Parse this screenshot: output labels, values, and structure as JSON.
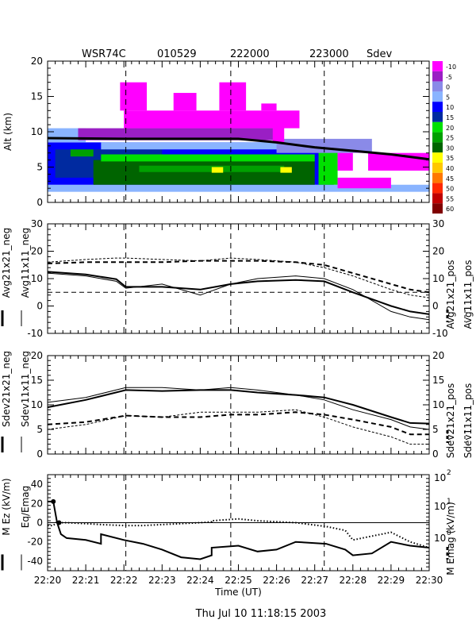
{
  "header": {
    "radar": "WSR74C",
    "date_code": "010529",
    "time_start": "222000",
    "time_end": "223000",
    "product": "Sdev"
  },
  "footer": {
    "timestamp": "Thu Jul 10 11:18:15 2003"
  },
  "chart_data": [
    {
      "id": "radar-panel",
      "type": "heatmap",
      "title": "WSR74C 010529 222000 223000 Sdev",
      "xlabel": "",
      "ylabel": "Alt (km)",
      "xlim": [
        0,
        10
      ],
      "ylim": [
        0,
        20
      ],
      "yticks": [
        0,
        5,
        10,
        15,
        20
      ],
      "colorbar": {
        "labels": [
          "-10",
          "-5",
          "0",
          "5",
          "10",
          "15",
          "20",
          "25",
          "30",
          "35",
          "40",
          "45",
          "50",
          "55",
          "60"
        ],
        "colors": [
          "#ff00ff",
          "#9a1fc4",
          "#8a8ae8",
          "#8ab4ff",
          "#0000ff",
          "#002aa0",
          "#00e000",
          "#00a000",
          "#006400",
          "#ffff00",
          "#ffc800",
          "#ff7800",
          "#ff2800",
          "#c00000",
          "#800000"
        ]
      },
      "vlines": [
        2.05,
        4.8,
        7.25
      ],
      "echo_regions": [
        {
          "t0": 0,
          "t1": 10,
          "z0": 1.5,
          "z1": 2.5,
          "color": "#8ab4ff"
        },
        {
          "t0": 0,
          "t1": 7.5,
          "z0": 2.5,
          "z1": 8.5,
          "color": "#0000ff"
        },
        {
          "t0": 0.2,
          "t1": 3,
          "z0": 3.5,
          "z1": 7.5,
          "color": "#002aa0"
        },
        {
          "t0": 1.2,
          "t1": 7.0,
          "z0": 2.5,
          "z1": 6.0,
          "color": "#006400"
        },
        {
          "t0": 1.4,
          "t1": 7.0,
          "z0": 5.8,
          "z1": 6.8,
          "color": "#00e000"
        },
        {
          "t0": 2.4,
          "t1": 6.2,
          "z0": 4.3,
          "z1": 5.2,
          "color": "#00a000"
        },
        {
          "t0": 7.1,
          "t1": 7.6,
          "z0": 2.5,
          "z1": 7.5,
          "color": "#00e000"
        },
        {
          "t0": 0.6,
          "t1": 1.2,
          "z0": 6.5,
          "z1": 7.5,
          "color": "#00a000"
        },
        {
          "t0": 4.3,
          "t1": 4.6,
          "z0": 4.2,
          "z1": 5.0,
          "color": "#ffff00"
        },
        {
          "t0": 6.1,
          "t1": 6.4,
          "z0": 4.2,
          "z1": 5.0,
          "color": "#ffff00"
        },
        {
          "t0": 0,
          "t1": 1.0,
          "z0": 8.5,
          "z1": 10.5,
          "color": "#8ab4ff"
        },
        {
          "t0": 1.4,
          "t1": 8.4,
          "z0": 7.5,
          "z1": 8.5,
          "color": "#8ab4ff"
        },
        {
          "t0": 6.0,
          "t1": 8.5,
          "z0": 7.0,
          "z1": 9.0,
          "color": "#8a8ae8"
        },
        {
          "t0": 0.8,
          "t1": 6.0,
          "z0": 8.8,
          "z1": 10.5,
          "color": "#9a1fc4"
        },
        {
          "t0": 7.6,
          "t1": 10,
          "z0": 4.5,
          "z1": 7.0,
          "color": "#ff00ff"
        },
        {
          "t0": 7.6,
          "t1": 9.0,
          "z0": 2.0,
          "z1": 3.5,
          "color": "#ff00ff"
        },
        {
          "t0": 8.0,
          "t1": 8.4,
          "z0": 4.0,
          "z1": 7.0,
          "color": "#ffffff"
        },
        {
          "t0": 2.0,
          "t1": 6.6,
          "z0": 10.5,
          "z1": 13.0,
          "color": "#ff00ff"
        },
        {
          "t0": 1.9,
          "t1": 2.6,
          "z0": 13.0,
          "z1": 17.0,
          "color": "#ff00ff"
        },
        {
          "t0": 4.5,
          "t1": 5.2,
          "z0": 13.0,
          "z1": 17.0,
          "color": "#ff00ff"
        },
        {
          "t0": 3.3,
          "t1": 3.9,
          "z0": 13.0,
          "z1": 15.5,
          "color": "#ff00ff"
        },
        {
          "t0": 5.6,
          "t1": 6.0,
          "z0": 13.0,
          "z1": 14.0,
          "color": "#ff00ff"
        },
        {
          "t0": 5.9,
          "t1": 6.2,
          "z0": 8.5,
          "z1": 11.0,
          "color": "#ff00ff"
        }
      ],
      "tropopause": {
        "t": [
          0,
          2,
          4,
          5,
          6,
          7,
          8,
          9,
          10
        ],
        "alt": [
          9.1,
          9.0,
          9.0,
          9.0,
          8.5,
          7.8,
          7.3,
          6.8,
          6.1
        ]
      }
    },
    {
      "id": "avg-panel",
      "type": "line",
      "xlim": [
        0,
        10
      ],
      "ylim": [
        -10,
        30
      ],
      "yticks": [
        -10,
        0,
        10,
        20,
        30
      ],
      "ylabel_left": [
        "Avg21x21_neg",
        "Avg11x11_neg"
      ],
      "ylabel_right": [
        "Avg21x21_pos",
        "Avg11x11_pos"
      ],
      "ref_y": 5,
      "vlines": [
        2.05,
        4.8,
        7.25
      ],
      "x": [
        0,
        1,
        1.8,
        2.05,
        3,
        4,
        4.8,
        5.5,
        6.5,
        7.25,
        8,
        9,
        9.5,
        10
      ],
      "series": [
        {
          "name": "Avg21x21_neg",
          "style": "thick",
          "values": [
            12.5,
            11.5,
            9.8,
            7,
            7,
            6,
            8,
            9,
            9.5,
            9,
            5,
            0,
            -2,
            -3
          ]
        },
        {
          "name": "Avg11x11_neg",
          "style": "thin",
          "values": [
            12,
            11,
            9,
            6.5,
            8,
            4,
            8,
            10,
            11,
            10,
            6,
            -2,
            -4,
            -5
          ]
        },
        {
          "name": "Avg21x21_pos",
          "style": "thick-dash",
          "values": [
            15.5,
            16,
            16,
            16,
            16,
            16.5,
            16.5,
            16.5,
            16,
            15,
            12,
            8,
            6,
            5
          ]
        },
        {
          "name": "Avg11x11_pos",
          "style": "thin-dash",
          "values": [
            16,
            17,
            17.5,
            17.5,
            17,
            16.5,
            17.5,
            17,
            16,
            14,
            11,
            6,
            4,
            3
          ]
        }
      ]
    },
    {
      "id": "sdev-panel",
      "type": "line",
      "xlim": [
        0,
        10
      ],
      "ylim": [
        0,
        20
      ],
      "yticks": [
        0,
        5,
        10,
        15,
        20
      ],
      "ylabel_left": [
        "Sdev21x21_neg",
        "Sdev11x11_neg"
      ],
      "ylabel_right": [
        "Sdev21x21_pos",
        "Sdev11x11_pos"
      ],
      "vlines": [
        2.05,
        4.8,
        7.25
      ],
      "x": [
        0,
        1,
        2.05,
        3,
        4,
        4.8,
        5.5,
        6.5,
        7.25,
        8,
        9,
        9.5,
        10
      ],
      "series": [
        {
          "name": "Sdev21x21_neg",
          "style": "thick",
          "values": [
            9.5,
            11,
            13,
            12.8,
            13,
            13,
            12.5,
            12,
            11.5,
            10,
            7.5,
            6.3,
            6.2
          ]
        },
        {
          "name": "Sdev11x11_neg",
          "style": "thin",
          "values": [
            10.5,
            11.5,
            13.5,
            13.5,
            13,
            13.5,
            13,
            12,
            11,
            9,
            7,
            5.5,
            5
          ]
        },
        {
          "name": "Sdev21x21_pos",
          "style": "thick-dash",
          "values": [
            6,
            6.5,
            7.8,
            7.5,
            7.5,
            8,
            8,
            8.5,
            8,
            7,
            5.5,
            4,
            4
          ]
        },
        {
          "name": "Sdev11x11_pos",
          "style": "thin-dash",
          "values": [
            5,
            6,
            7.8,
            7.5,
            8.5,
            8.5,
            8.5,
            9,
            7.5,
            5.5,
            3.5,
            2,
            2
          ]
        }
      ]
    },
    {
      "id": "field-panel",
      "type": "line",
      "xlabel": "Time (UT)",
      "xlim": [
        0,
        10
      ],
      "ylim": [
        -50,
        50
      ],
      "yticks": [
        -40,
        -20,
        0,
        20,
        40
      ],
      "xtick_labels": [
        "22:20",
        "22:21",
        "22:22",
        "22:23",
        "22:24",
        "22:25",
        "22:26",
        "22:27",
        "22:28",
        "22:29",
        "22:30"
      ],
      "ylabel_left": [
        "M Ez (kV/m)",
        "Eq/Emag"
      ],
      "ylabel_right": [
        "M Emag (kV/m)"
      ],
      "right_axis": {
        "scale": "log",
        "labels": [
          "10",
          "10",
          "10"
        ],
        "exponents": [
          "2",
          "1",
          "0"
        ]
      },
      "vlines": [
        2.05,
        4.8,
        7.25
      ],
      "x": [
        0,
        0.15,
        0.25,
        0.35,
        0.5,
        1,
        1.4,
        1.4,
        2,
        2.5,
        3,
        3.5,
        4,
        4.3,
        4.3,
        5,
        5.5,
        6,
        6.5,
        7.3,
        7.8,
        8,
        8.5,
        9,
        9.5,
        10
      ],
      "series": [
        {
          "name": "M Ez",
          "style": "thick",
          "values": [
            22,
            22,
            0,
            -12,
            -16,
            -18,
            -22,
            -12,
            -18,
            -22,
            -28,
            -36,
            -38,
            -34,
            -26,
            -24,
            -30,
            -28,
            -20,
            -22,
            -28,
            -34,
            -32,
            -20,
            -24,
            -26
          ]
        },
        {
          "name": "Eq/Emag",
          "style": "dotted",
          "values": [
            -3,
            -3,
            1,
            0,
            0,
            -1,
            -2,
            -2,
            -3,
            -3,
            -2,
            -1,
            0,
            1,
            2,
            4,
            2,
            1,
            0,
            -4,
            -8,
            -18,
            -14,
            -10,
            -20,
            -26
          ]
        },
        {
          "name": "M Emag",
          "style": "thin",
          "values": [
            0,
            0,
            0,
            0,
            0,
            0,
            0,
            0,
            0,
            0,
            0,
            0,
            0,
            0,
            0,
            0,
            0,
            0,
            0,
            0,
            0,
            0,
            0,
            0,
            0,
            0
          ]
        }
      ]
    }
  ]
}
